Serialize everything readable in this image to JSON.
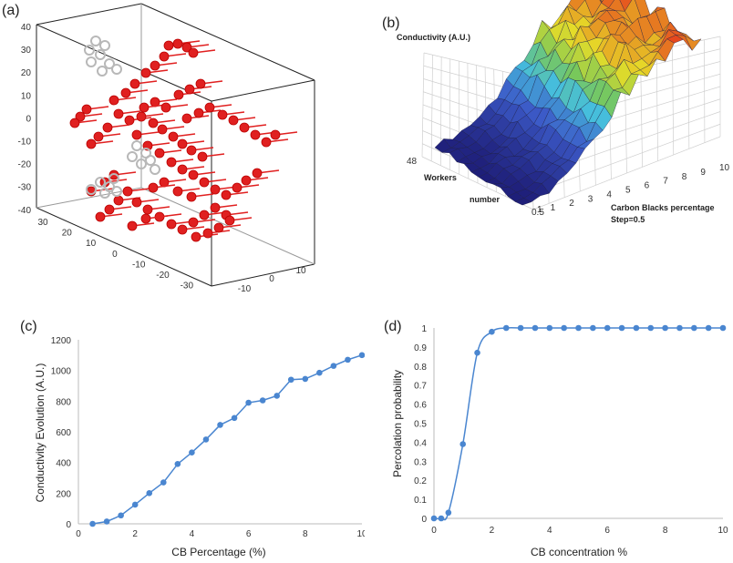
{
  "chart_data": [
    {
      "panel": "(a)",
      "type": "scatter",
      "title": "",
      "z_ticks": [
        "40",
        "30",
        "20",
        "10",
        "0",
        "-10",
        "-20",
        "-30",
        "-40"
      ],
      "x_ticks": [
        "30",
        "20",
        "10",
        "0",
        "-10",
        "-20",
        "-30"
      ],
      "y_ticks": [
        "10",
        "0",
        "-10"
      ],
      "series": [
        {
          "color": "#e02020"
        },
        {
          "color": "#b8b8b8"
        }
      ]
    },
    {
      "panel": "(b)",
      "type": "heatmap",
      "title": "Conductivity (A.U.)",
      "y_label_1": "Workers",
      "y_label_2": "number",
      "x_label_1": "Carbon Blacks percentage",
      "x_label_2": "Step=0.5",
      "x_ticks": [
        "0.5",
        "1",
        "2",
        "3",
        "4",
        "5",
        "6",
        "7",
        "8",
        "9",
        "10"
      ],
      "y_ticks": [
        "48",
        "1"
      ]
    },
    {
      "panel": "(c)",
      "type": "line",
      "xlabel": "CB Percentage (%)",
      "ylabel": "Conductivity Evolution  (A.U.)",
      "xlim": [
        0,
        10
      ],
      "ylim": [
        0,
        1200
      ],
      "x_ticks": [
        0,
        2,
        4,
        6,
        8,
        10
      ],
      "y_ticks": [
        0,
        200,
        400,
        600,
        800,
        1000,
        1200
      ],
      "x": [
        0.5,
        1,
        1.5,
        2,
        2.5,
        3,
        3.5,
        4,
        4.5,
        5,
        5.5,
        6,
        6.5,
        7,
        7.5,
        8,
        8.5,
        9,
        9.5,
        10
      ],
      "values": [
        0,
        15,
        55,
        125,
        200,
        270,
        390,
        465,
        550,
        645,
        690,
        790,
        805,
        835,
        940,
        945,
        985,
        1030,
        1070,
        1100
      ],
      "color": "#4a86d0"
    },
    {
      "panel": "(d)",
      "type": "line",
      "xlabel": "CB concentration %",
      "ylabel": "Percolation probability",
      "xlim": [
        0,
        10
      ],
      "ylim": [
        0,
        1
      ],
      "x_ticks": [
        0,
        2,
        4,
        6,
        8,
        10
      ],
      "y_ticks": [
        "0",
        "0.1",
        "0.2",
        "0.3",
        "0.4",
        "0.5",
        "0.6",
        "0.7",
        "0.8",
        "0.9",
        "1"
      ],
      "x": [
        0,
        0.25,
        0.5,
        1,
        1.5,
        2,
        2.5,
        3,
        3.5,
        4,
        4.5,
        5,
        5.5,
        6,
        6.5,
        7,
        7.5,
        8,
        8.5,
        9,
        9.5,
        10
      ],
      "values": [
        0,
        0,
        0.03,
        0.39,
        0.87,
        0.98,
        1,
        1,
        1,
        1,
        1,
        1,
        1,
        1,
        1,
        1,
        1,
        1,
        1,
        1,
        1,
        1
      ],
      "color": "#4a86d0"
    }
  ]
}
